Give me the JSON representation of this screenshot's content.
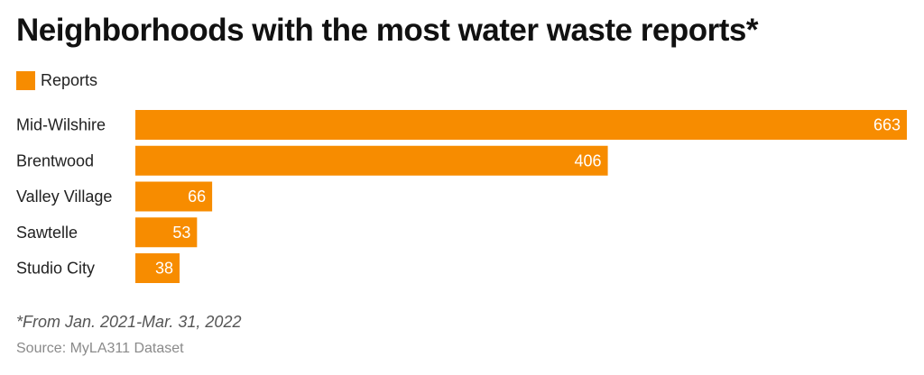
{
  "title": "Neighborhoods with the most water waste reports*",
  "legend": {
    "label": "Reports",
    "color": "#f78c00"
  },
  "footnote": "*From Jan. 2021-Mar. 31, 2022",
  "source": "Source: MyLA311 Dataset",
  "chart_data": {
    "type": "bar",
    "orientation": "horizontal",
    "categories": [
      "Mid-Wilshire",
      "Brentwood",
      "Valley Village",
      "Sawtelle",
      "Studio City"
    ],
    "series": [
      {
        "name": "Reports",
        "values": [
          663,
          406,
          66,
          53,
          38
        ],
        "color": "#f78c00"
      }
    ],
    "data_labels": true,
    "legend_position": "top-left",
    "grid": false
  }
}
